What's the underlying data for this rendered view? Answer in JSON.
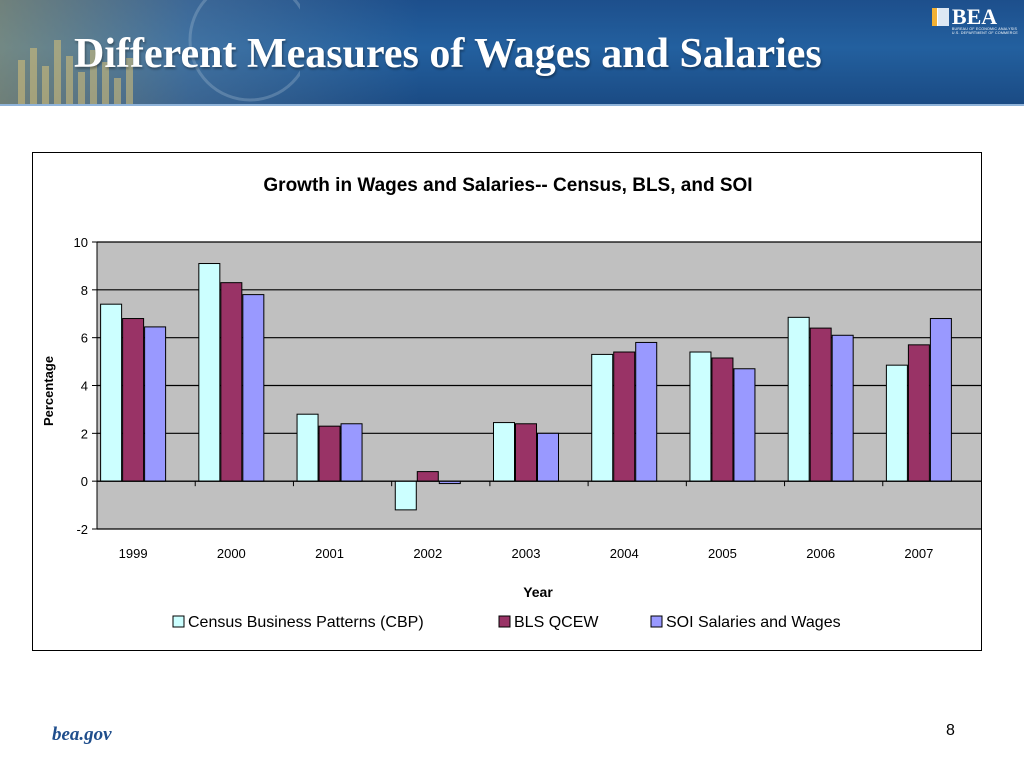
{
  "slide": {
    "title": "Different Measures of Wages and Salaries",
    "footer_site": "bea.gov",
    "page_number": "8"
  },
  "logo": {
    "word": "BEA",
    "sub_line1": "BUREAU OF ECONOMIC ANALYSIS",
    "sub_line2": "U.S. DEPARTMENT OF COMMERCE"
  },
  "colors": {
    "header_blue": "#23609f",
    "plot_background": "#c0c0c0"
  },
  "chart_data": {
    "type": "bar",
    "title": "Growth in Wages and Salaries-- Census, BLS, and SOI",
    "xlabel": "Year",
    "ylabel": "Percentage",
    "ylim": [
      -2,
      10
    ],
    "yticks": [
      -2,
      0,
      2,
      4,
      6,
      8,
      10
    ],
    "grid": true,
    "legend_position": "bottom",
    "categories": [
      "1999",
      "2000",
      "2001",
      "2002",
      "2003",
      "2004",
      "2005",
      "2006",
      "2007"
    ],
    "series": [
      {
        "name": "Census Business Patterns (CBP)",
        "color": "#ccffff",
        "values": [
          7.4,
          9.1,
          2.8,
          -1.2,
          2.45,
          5.3,
          5.4,
          6.85,
          4.85
        ]
      },
      {
        "name": "BLS QCEW",
        "color": "#993366",
        "values": [
          6.8,
          8.3,
          2.3,
          0.4,
          2.4,
          5.4,
          5.15,
          6.4,
          5.7
        ]
      },
      {
        "name": "SOI Salaries and Wages",
        "color": "#9999ff",
        "values": [
          6.45,
          7.8,
          2.4,
          -0.1,
          2.0,
          5.8,
          4.7,
          6.1,
          6.8
        ]
      }
    ]
  }
}
